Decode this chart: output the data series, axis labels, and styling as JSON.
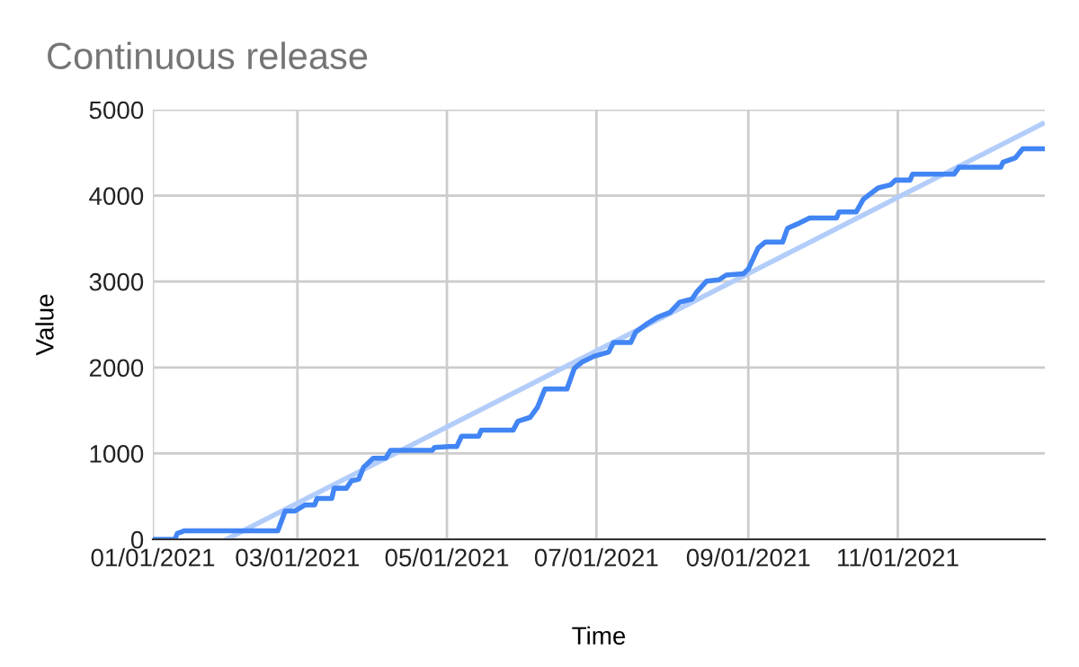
{
  "chart_data": {
    "type": "line",
    "title": "Continuous release",
    "xlabel": "Time",
    "ylabel": "Value",
    "xlim": [
      "2021-01-01",
      "2021-12-31"
    ],
    "ylim": [
      0,
      5000
    ],
    "xticks": [
      {
        "value": "2021-01-01",
        "label": "01/01/2021"
      },
      {
        "value": "2021-03-01",
        "label": "03/01/2021"
      },
      {
        "value": "2021-05-01",
        "label": "05/01/2021"
      },
      {
        "value": "2021-07-01",
        "label": "07/01/2021"
      },
      {
        "value": "2021-09-01",
        "label": "09/01/2021"
      },
      {
        "value": "2021-11-01",
        "label": "11/01/2021"
      }
    ],
    "yticks": [
      0,
      1000,
      2000,
      3000,
      4000,
      5000
    ],
    "grid": true,
    "legend": false,
    "series": [
      {
        "color": "#b3cdfa",
        "x": [
          "2021-01-31",
          "2021-12-30"
        ],
        "values": [
          0,
          4835
        ]
      },
      {
        "color": "#4285f4",
        "x": [
          "2021-01-01",
          "2021-01-10",
          "2021-01-11",
          "2021-01-14",
          "2021-02-21",
          "2021-02-24",
          "2021-02-28",
          "2021-03-04",
          "2021-03-08",
          "2021-03-09",
          "2021-03-15",
          "2021-03-16",
          "2021-03-21",
          "2021-03-23",
          "2021-03-26",
          "2021-03-28",
          "2021-04-01",
          "2021-04-06",
          "2021-04-08",
          "2021-04-25",
          "2021-04-26",
          "2021-05-02",
          "2021-05-05",
          "2021-05-07",
          "2021-05-14",
          "2021-05-15",
          "2021-05-28",
          "2021-05-30",
          "2021-06-04",
          "2021-06-07",
          "2021-06-10",
          "2021-06-19",
          "2021-06-22",
          "2021-06-25",
          "2021-06-30",
          "2021-07-06",
          "2021-07-08",
          "2021-07-15",
          "2021-07-17",
          "2021-07-22",
          "2021-07-26",
          "2021-07-31",
          "2021-08-04",
          "2021-08-09",
          "2021-08-11",
          "2021-08-15",
          "2021-08-20",
          "2021-08-23",
          "2021-08-30",
          "2021-09-01",
          "2021-09-05",
          "2021-09-08",
          "2021-09-15",
          "2021-09-17",
          "2021-09-21",
          "2021-09-26",
          "2021-10-07",
          "2021-10-08",
          "2021-10-15",
          "2021-10-18",
          "2021-10-24",
          "2021-10-29",
          "2021-10-31",
          "2021-11-06",
          "2021-11-07",
          "2021-11-24",
          "2021-11-26",
          "2021-12-13",
          "2021-12-14",
          "2021-12-19",
          "2021-12-22",
          "2021-12-31"
        ],
        "values": [
          0,
          0,
          70,
          100,
          100,
          330,
          330,
          400,
          400,
          475,
          475,
          595,
          595,
          680,
          700,
          840,
          945,
          945,
          1035,
          1035,
          1070,
          1080,
          1080,
          1200,
          1200,
          1270,
          1270,
          1375,
          1420,
          1540,
          1750,
          1750,
          1990,
          2060,
          2130,
          2180,
          2290,
          2290,
          2410,
          2515,
          2585,
          2640,
          2760,
          2795,
          2880,
          3005,
          3020,
          3075,
          3090,
          3145,
          3390,
          3460,
          3460,
          3620,
          3670,
          3740,
          3740,
          3810,
          3810,
          3960,
          4090,
          4125,
          4180,
          4180,
          4250,
          4250,
          4330,
          4330,
          4390,
          4440,
          4545,
          4545
        ]
      }
    ]
  }
}
